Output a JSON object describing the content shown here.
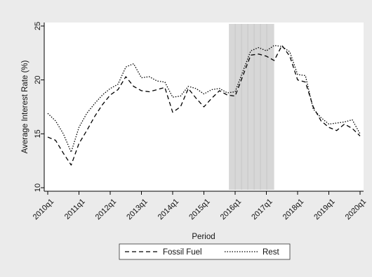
{
  "chart_data": {
    "type": "line",
    "title": "",
    "xlabel": "Period",
    "ylabel": "Average Interest Rate (%)",
    "ylim": [
      10,
      25
    ],
    "yticks": [
      "10",
      "15",
      "20",
      "25"
    ],
    "xticks": [
      "2010q1",
      "2011q1",
      "2012q1",
      "2013q1",
      "2014q1",
      "2015q1",
      "2016q1",
      "2017q1",
      "2018q1",
      "2019q1",
      "2020q1"
    ],
    "xlim": [
      2010.0,
      2020.0
    ],
    "grid": false,
    "legend_position": "bottom",
    "shaded_region": {
      "start": 2015.8,
      "end": 2017.25
    },
    "series": [
      {
        "name": "Fossil Fuel",
        "dash": "dashed",
        "points": [
          [
            2010.0,
            14.7
          ],
          [
            2010.25,
            14.4
          ],
          [
            2010.5,
            13.2
          ],
          [
            2010.75,
            12.1
          ],
          [
            2011.0,
            14.1
          ],
          [
            2011.25,
            15.3
          ],
          [
            2011.5,
            16.6
          ],
          [
            2011.75,
            17.7
          ],
          [
            2012.0,
            18.6
          ],
          [
            2012.25,
            19.1
          ],
          [
            2012.5,
            20.3
          ],
          [
            2012.75,
            19.4
          ],
          [
            2013.0,
            19.0
          ],
          [
            2013.25,
            18.9
          ],
          [
            2013.5,
            19.1
          ],
          [
            2013.75,
            19.3
          ],
          [
            2014.0,
            17.0
          ],
          [
            2014.25,
            17.5
          ],
          [
            2014.5,
            19.2
          ],
          [
            2014.75,
            18.3
          ],
          [
            2015.0,
            17.5
          ],
          [
            2015.25,
            18.3
          ],
          [
            2015.5,
            19.0
          ],
          [
            2015.75,
            18.6
          ],
          [
            2016.0,
            18.5
          ],
          [
            2016.25,
            20.4
          ],
          [
            2016.5,
            22.3
          ],
          [
            2016.75,
            22.4
          ],
          [
            2017.0,
            22.2
          ],
          [
            2017.25,
            21.8
          ],
          [
            2017.5,
            23.2
          ],
          [
            2017.75,
            22.2
          ],
          [
            2018.0,
            20.0
          ],
          [
            2018.25,
            19.8
          ],
          [
            2018.5,
            17.5
          ],
          [
            2018.75,
            16.2
          ],
          [
            2019.0,
            15.6
          ],
          [
            2019.25,
            15.3
          ],
          [
            2019.5,
            15.9
          ],
          [
            2019.75,
            15.5
          ],
          [
            2020.0,
            14.8
          ]
        ]
      },
      {
        "name": "Rest",
        "dash": "dotted",
        "points": [
          [
            2010.0,
            16.9
          ],
          [
            2010.25,
            16.2
          ],
          [
            2010.5,
            15.0
          ],
          [
            2010.75,
            13.3
          ],
          [
            2011.0,
            15.6
          ],
          [
            2011.25,
            16.9
          ],
          [
            2011.5,
            17.8
          ],
          [
            2011.75,
            18.6
          ],
          [
            2012.0,
            19.2
          ],
          [
            2012.25,
            19.6
          ],
          [
            2012.5,
            21.2
          ],
          [
            2012.75,
            21.5
          ],
          [
            2013.0,
            20.2
          ],
          [
            2013.25,
            20.3
          ],
          [
            2013.5,
            19.9
          ],
          [
            2013.75,
            19.8
          ],
          [
            2014.0,
            18.4
          ],
          [
            2014.25,
            18.5
          ],
          [
            2014.5,
            19.4
          ],
          [
            2014.75,
            19.2
          ],
          [
            2015.0,
            18.7
          ],
          [
            2015.25,
            19.1
          ],
          [
            2015.5,
            19.2
          ],
          [
            2015.75,
            18.8
          ],
          [
            2016.0,
            18.9
          ],
          [
            2016.25,
            20.8
          ],
          [
            2016.5,
            22.7
          ],
          [
            2016.75,
            23.0
          ],
          [
            2017.0,
            22.7
          ],
          [
            2017.25,
            23.2
          ],
          [
            2017.5,
            23.1
          ],
          [
            2017.75,
            22.6
          ],
          [
            2018.0,
            20.5
          ],
          [
            2018.25,
            20.4
          ],
          [
            2018.5,
            17.3
          ],
          [
            2018.75,
            16.5
          ],
          [
            2019.0,
            15.9
          ],
          [
            2019.25,
            16.0
          ],
          [
            2019.5,
            16.1
          ],
          [
            2019.75,
            16.3
          ],
          [
            2020.0,
            15.0
          ]
        ]
      }
    ]
  }
}
